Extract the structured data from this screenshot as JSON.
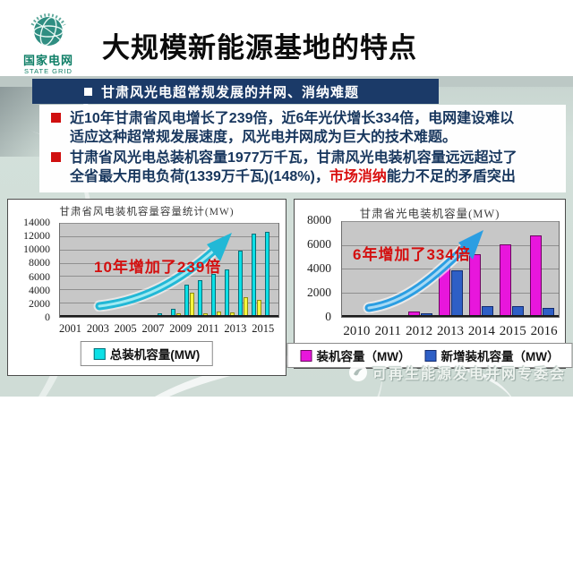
{
  "header": {
    "logo_zh": "国家电网",
    "logo_en": "STATE GRID",
    "title": "大规模新能源基地的特点"
  },
  "section_bar": {
    "text": "甘肃风光电超常规发展的并网、消纳难题"
  },
  "bullets": {
    "b1_l1": "近10年甘肃省风电增长了239倍，近6年光伏增长334倍，电网建设难以",
    "b1_l2": "适应这种超常规发展速度，风光电并网成为巨大的技术难题。",
    "b2_l1": "甘肃省风光电总装机容量1977万千瓦，甘肃风光电装机容量远远超过了",
    "b2_l2_pre": "全省最大用电负荷(1339万千瓦)(148%)，",
    "b2_l2_hl": "市场消纳",
    "b2_l2_post": "能力不足的矛盾突出"
  },
  "colors": {
    "section_bar_navy": "#1b3a68",
    "bullet_text_navy": "#17365d",
    "bullet_square_red": "#d01010",
    "highlight_red": "#d90f0f",
    "annotation_red": "#d40f0f",
    "logo_green": "#0e7e66",
    "plot_background_gray": "#c7c7c7"
  },
  "chart_data": [
    {
      "type": "bar",
      "title": "甘肃省风电装机容量容量统计(MW)",
      "categories": [
        "2001",
        "2002",
        "2003",
        "2004",
        "2005",
        "2006",
        "2007",
        "2008",
        "2009",
        "2010",
        "2011",
        "2012",
        "2013",
        "2014",
        "2015",
        "2016"
      ],
      "show_label_every": 2,
      "ylim": [
        0,
        14000
      ],
      "ytick_step": 2000,
      "grid": true,
      "legend_position": "bottom",
      "annotation": "10年增加了239倍",
      "arrow_color": "#22b8d6",
      "series": [
        {
          "name": "总装机容量(MW)",
          "color": "#0ce0e6",
          "border": "#046e78",
          "values": [
            30,
            40,
            60,
            80,
            110,
            150,
            300,
            550,
            1200,
            4900,
            5500,
            6400,
            7100,
            10000,
            12500,
            12800
          ]
        },
        {
          "name": "",
          "color": "#f6f63e",
          "border": "#8f8f10",
          "values": [
            0,
            0,
            0,
            0,
            0,
            60,
            150,
            250,
            600,
            3700,
            600,
            750,
            650,
            3000,
            2600,
            300
          ]
        }
      ]
    },
    {
      "type": "bar",
      "title": "甘肃省光电装机容量(MW)",
      "categories": [
        "2010",
        "2011",
        "2012",
        "2013",
        "2014",
        "2015",
        "2016"
      ],
      "show_label_every": 1,
      "ylim": [
        0,
        8000
      ],
      "ytick_step": 2000,
      "grid": true,
      "legend_position": "bottom",
      "annotation": "6年增加了334倍",
      "arrow_color": "#2b9ee2",
      "series": [
        {
          "name": "装机容量（MW）",
          "color": "#e816dc",
          "border": "#6d0660",
          "values": [
            25,
            130,
            420,
            4300,
            5250,
            6100,
            6850
          ]
        },
        {
          "name": "新增装机容量（MW）",
          "color": "#2e5fc6",
          "border": "#122a6e",
          "values": [
            25,
            130,
            300,
            3900,
            880,
            920,
            760
          ]
        }
      ]
    }
  ],
  "footer": {
    "watermark": "可再生能源发电并网专委会"
  }
}
